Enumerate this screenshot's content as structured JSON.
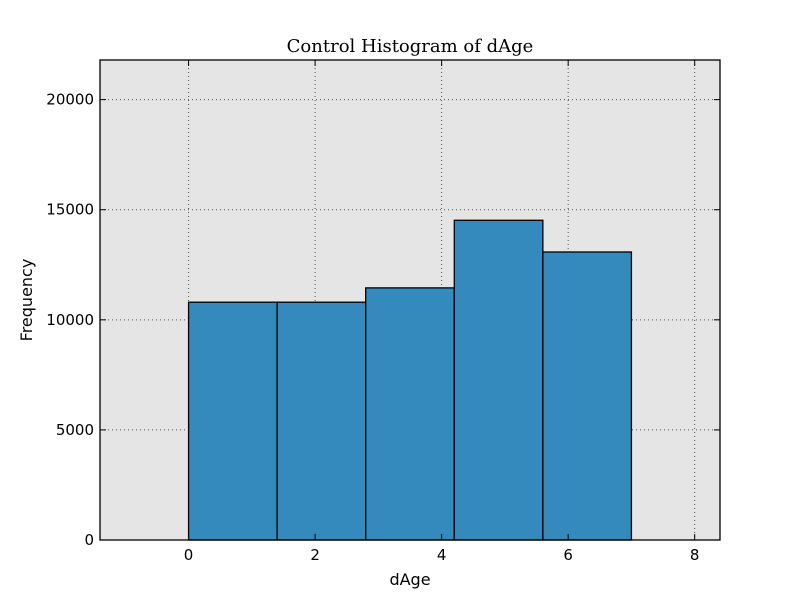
{
  "chart_data": {
    "type": "bar",
    "title": "Control Histogram of dAge",
    "xlabel": "dAge",
    "ylabel": "Frequency",
    "xlim": [
      -1.4,
      8.4
    ],
    "ylim": [
      0,
      21800
    ],
    "grid": true,
    "x_ticks": [
      0,
      2,
      4,
      6,
      8
    ],
    "y_ticks": [
      0,
      5000,
      10000,
      15000,
      20000
    ],
    "bins": [
      {
        "x0": 0.0,
        "x1": 1.4,
        "value": 10800
      },
      {
        "x0": 1.4,
        "x1": 2.8,
        "value": 10800
      },
      {
        "x0": 2.8,
        "x1": 4.2,
        "value": 11450
      },
      {
        "x0": 4.2,
        "x1": 5.6,
        "value": 14520
      },
      {
        "x0": 5.6,
        "x1": 7.0,
        "value": 13080
      }
    ],
    "colors": {
      "bar_fill": "#348ABD",
      "bar_edge": "#000000",
      "plot_background": "#E5E5E5",
      "grid": "#555555"
    }
  }
}
